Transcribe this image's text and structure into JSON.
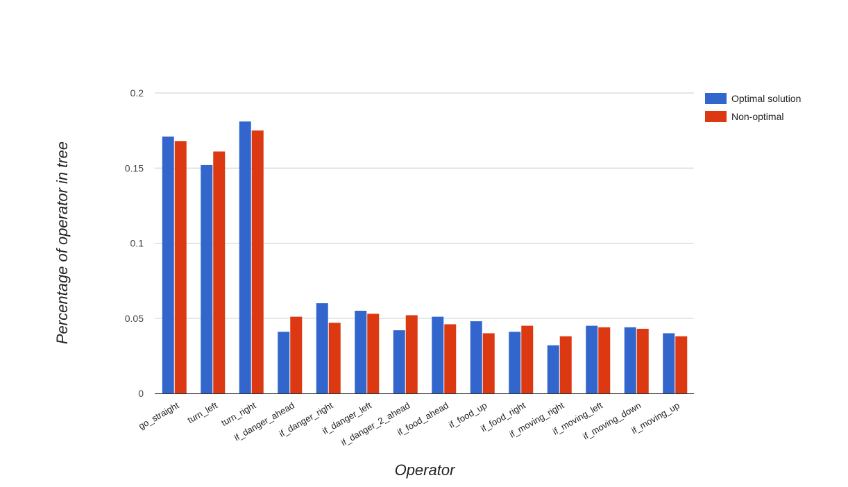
{
  "chart_data": {
    "type": "bar",
    "title": "",
    "xlabel": "Operator",
    "ylabel": "Percentage of operator in tree",
    "ylim": [
      0,
      0.2
    ],
    "yticks": [
      "0",
      "0.05",
      "0.1",
      "0.15",
      "0.2"
    ],
    "yticks_values": [
      0,
      0.05,
      0.1,
      0.15,
      0.2
    ],
    "grid": true,
    "legend_position": "top-right",
    "categories": [
      "go_straight",
      "turn_left",
      "turn_right",
      "if_danger_ahead",
      "if_danger_right",
      "if_danger_left",
      "if_danger_2_ahead",
      "if_food_ahead",
      "if_food_up",
      "if_food_right",
      "if_moving_right",
      "if_moving_left",
      "if_moving_down",
      "if_moving_up"
    ],
    "series": [
      {
        "name": "Optimal solution",
        "color": "#3366cc",
        "values": [
          0.171,
          0.152,
          0.181,
          0.041,
          0.06,
          0.055,
          0.042,
          0.051,
          0.048,
          0.041,
          0.032,
          0.045,
          0.044,
          0.04
        ]
      },
      {
        "name": "Non-optimal",
        "color": "#dc3912",
        "values": [
          0.168,
          0.161,
          0.175,
          0.051,
          0.047,
          0.053,
          0.052,
          0.046,
          0.04,
          0.045,
          0.038,
          0.044,
          0.043,
          0.038
        ]
      }
    ]
  }
}
